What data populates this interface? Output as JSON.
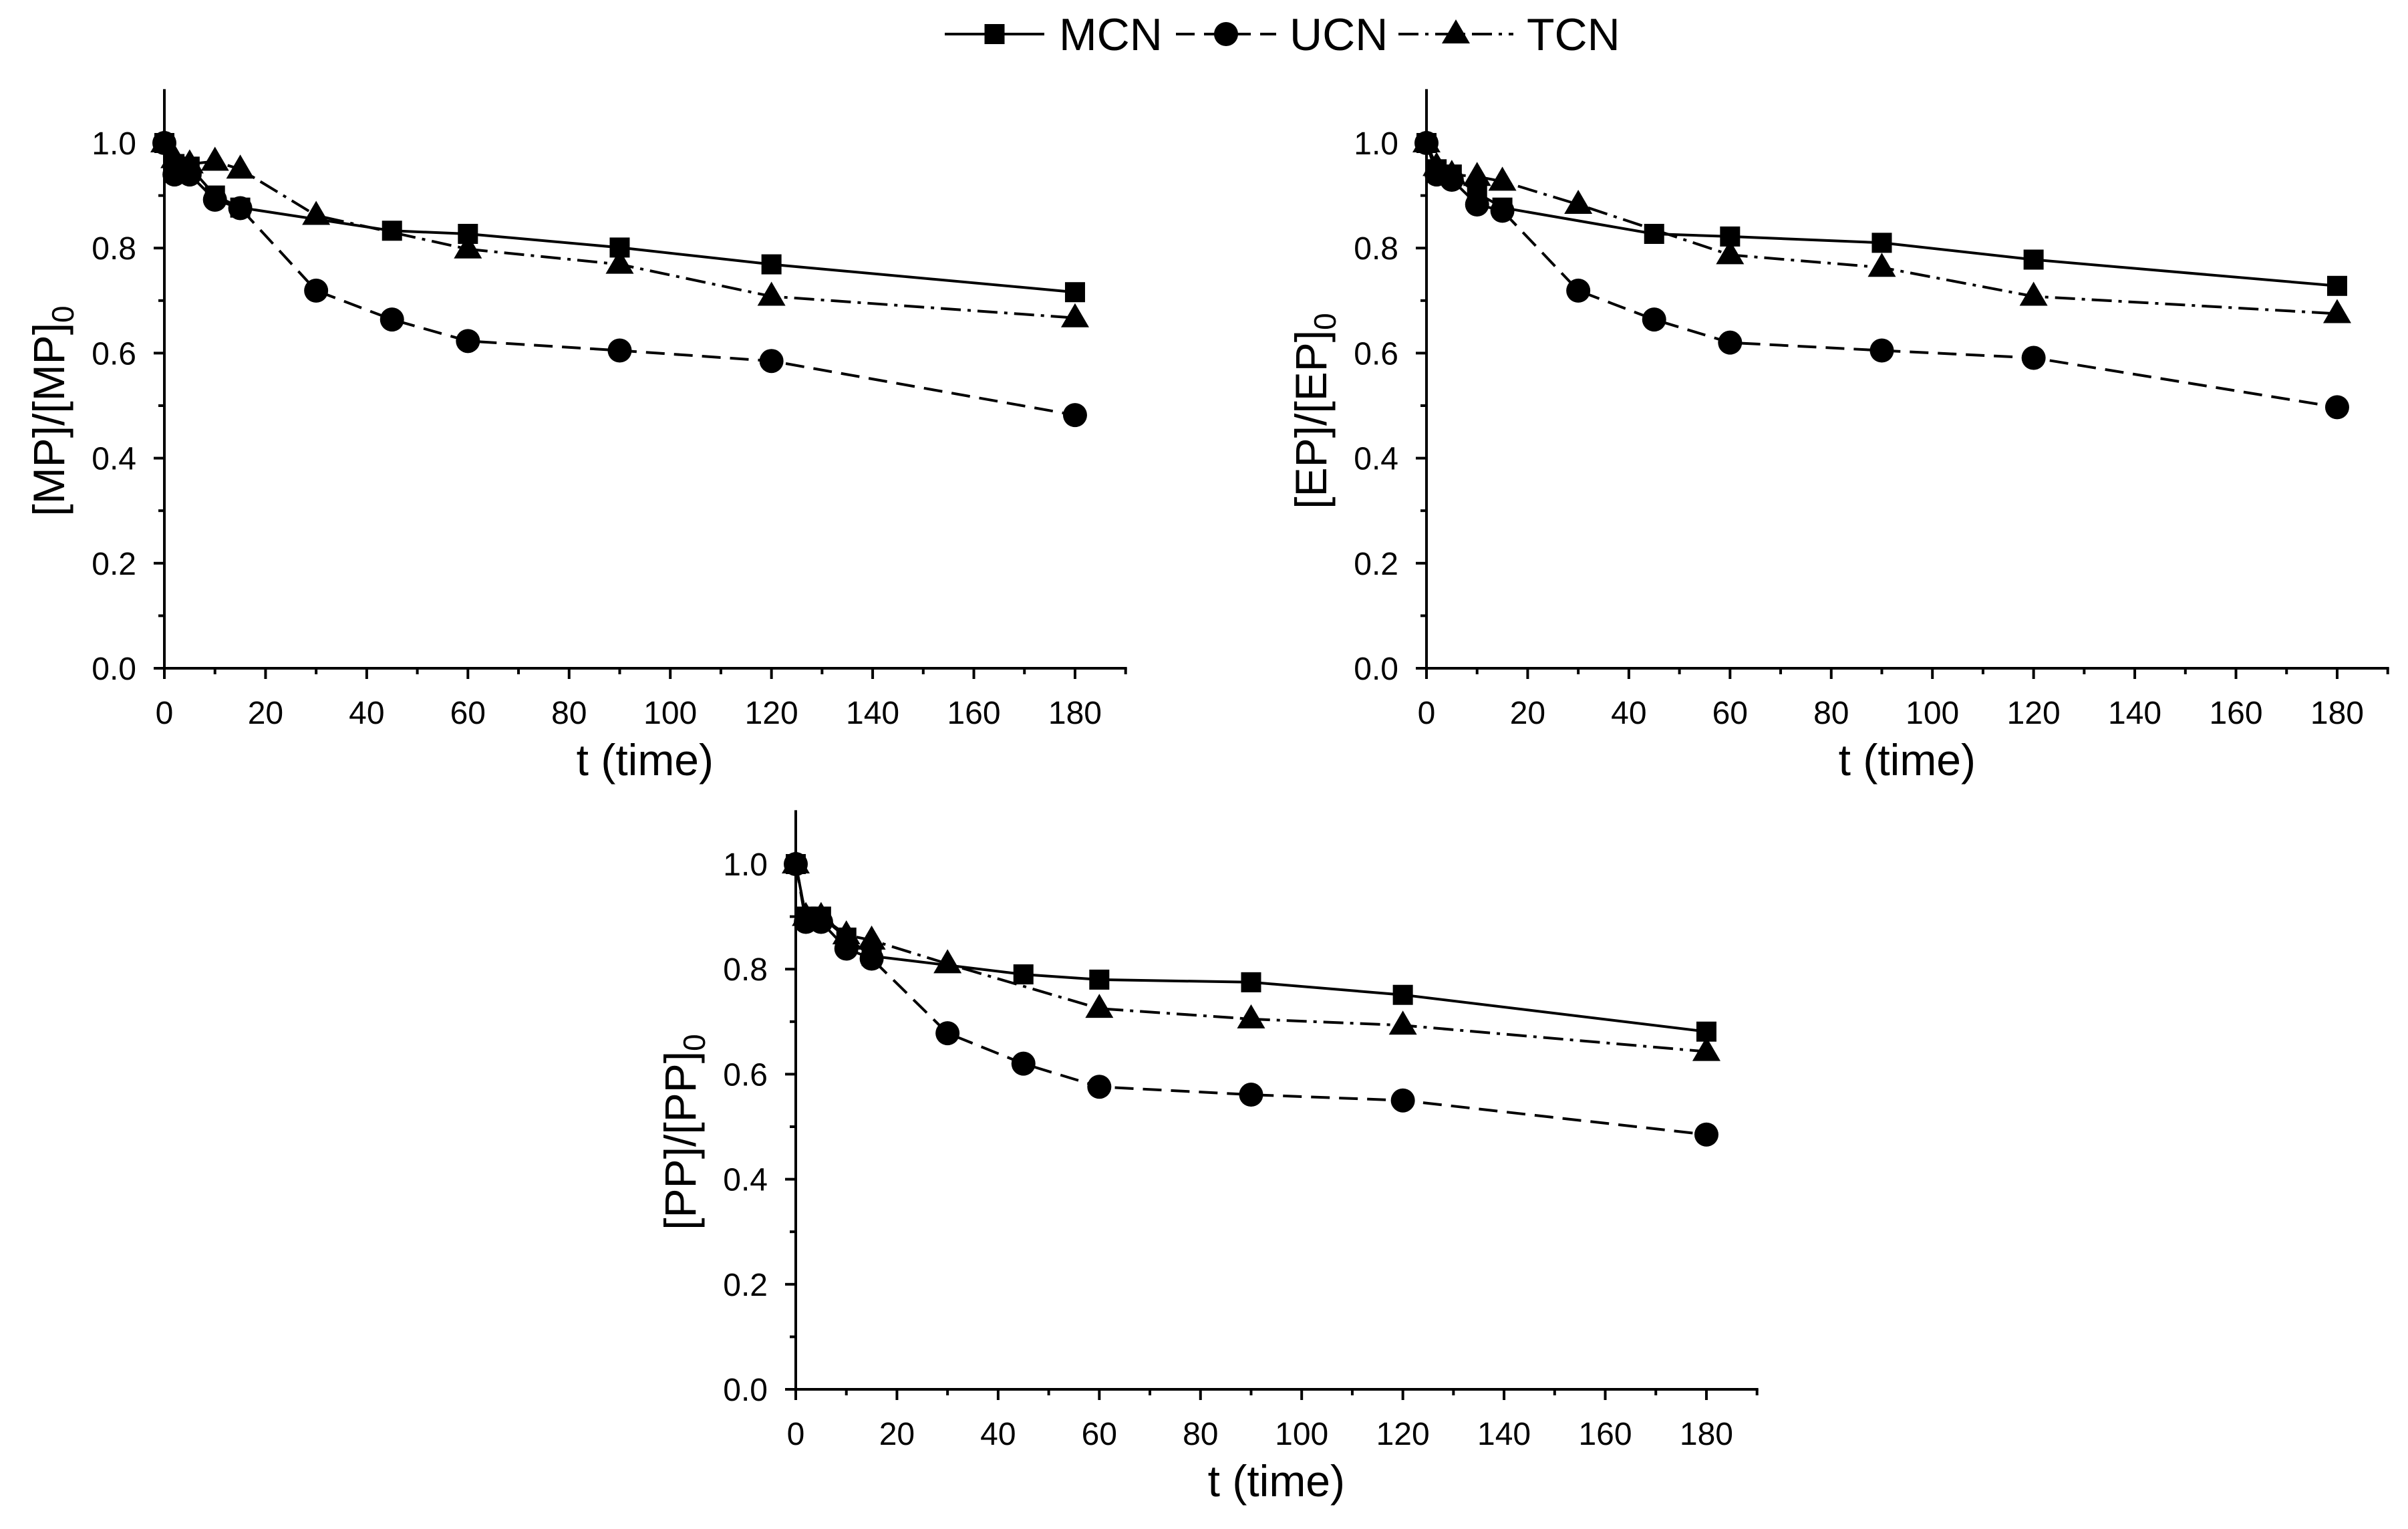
{
  "legend": {
    "position": "top-center"
  },
  "chart_data": [
    {
      "type": "line",
      "xlabel": "t (time)",
      "ylabel": "[MP]/[MP]",
      "ylabel_subscript": "0",
      "xlim": [
        0,
        190
      ],
      "ylim": [
        0,
        1.1
      ],
      "xtick_labels": [
        "0",
        "20",
        "40",
        "60",
        "80",
        "100",
        "120",
        "140",
        "160",
        "180"
      ],
      "ytick_labels": [
        "0.0",
        "0.2",
        "0.4",
        "0.6",
        "0.8",
        "1.0"
      ],
      "grid": false,
      "x": [
        0,
        2,
        5,
        10,
        15,
        30,
        45,
        60,
        90,
        120,
        180
      ],
      "series": [
        {
          "name": "MCN",
          "marker": "square",
          "line_style": "solid",
          "color": "#000000",
          "values": [
            1.0,
            0.96,
            0.955,
            0.9,
            0.877,
            null,
            0.833,
            0.827,
            0.801,
            0.769,
            0.716
          ]
        },
        {
          "name": "UCN",
          "marker": "circle",
          "line_style": "dashed",
          "color": "#000000",
          "values": [
            1.0,
            0.94,
            0.94,
            0.892,
            0.876,
            0.719,
            0.664,
            0.623,
            0.605,
            0.585,
            0.482
          ]
        },
        {
          "name": "TCN",
          "marker": "triangle",
          "line_style": "dash-dot",
          "color": "#000000",
          "values": [
            1.0,
            0.97,
            0.96,
            0.965,
            0.95,
            0.862,
            null,
            0.798,
            0.769,
            0.708,
            0.667
          ]
        }
      ]
    },
    {
      "type": "line",
      "xlabel": "t (time)",
      "ylabel": "[EP]/[EP]",
      "ylabel_subscript": "0",
      "xlim": [
        0,
        190
      ],
      "ylim": [
        0,
        1.1
      ],
      "xtick_labels": [
        "0",
        "20",
        "40",
        "60",
        "80",
        "100",
        "120",
        "140",
        "160",
        "180"
      ],
      "ytick_labels": [
        "0.0",
        "0.2",
        "0.4",
        "0.6",
        "0.8",
        "1.0"
      ],
      "grid": false,
      "x": [
        0,
        2,
        5,
        10,
        15,
        30,
        45,
        60,
        90,
        120,
        180
      ],
      "series": [
        {
          "name": "MCN",
          "marker": "square",
          "line_style": "solid",
          "color": "#000000",
          "values": [
            1.0,
            0.95,
            0.94,
            0.905,
            0.877,
            null,
            0.827,
            0.822,
            0.81,
            0.778,
            0.728
          ]
        },
        {
          "name": "UCN",
          "marker": "circle",
          "line_style": "dashed",
          "color": "#000000",
          "values": [
            1.0,
            0.94,
            0.93,
            0.883,
            0.871,
            0.719,
            0.664,
            0.62,
            0.605,
            0.591,
            0.497
          ]
        },
        {
          "name": "TCN",
          "marker": "triangle",
          "line_style": "dash-dot",
          "color": "#000000",
          "values": [
            1.0,
            0.955,
            0.94,
            0.936,
            0.927,
            0.883,
            null,
            0.787,
            0.763,
            0.708,
            0.675
          ]
        }
      ]
    },
    {
      "type": "line",
      "xlabel": "t (time)",
      "ylabel": "[PP]/[PP]",
      "ylabel_subscript": "0",
      "xlim": [
        0,
        190
      ],
      "ylim": [
        0,
        1.1
      ],
      "xtick_labels": [
        "0",
        "20",
        "40",
        "60",
        "80",
        "100",
        "120",
        "140",
        "160",
        "180"
      ],
      "ytick_labels": [
        "0.0",
        "0.2",
        "0.4",
        "0.6",
        "0.8",
        "1.0"
      ],
      "grid": false,
      "x": [
        0,
        2,
        5,
        10,
        15,
        30,
        45,
        60,
        90,
        120,
        180
      ],
      "series": [
        {
          "name": "MCN",
          "marker": "square",
          "line_style": "solid",
          "color": "#000000",
          "values": [
            1.0,
            0.9,
            0.9,
            0.86,
            0.825,
            null,
            0.79,
            0.78,
            0.775,
            0.751,
            0.681
          ]
        },
        {
          "name": "UCN",
          "marker": "circle",
          "line_style": "dashed",
          "color": "#000000",
          "values": [
            1.0,
            0.89,
            0.89,
            0.839,
            0.82,
            0.678,
            0.62,
            0.576,
            0.561,
            0.55,
            0.485
          ]
        },
        {
          "name": "TCN",
          "marker": "triangle",
          "line_style": "dash-dot",
          "color": "#000000",
          "values": [
            1.0,
            0.9,
            0.9,
            0.865,
            0.855,
            0.81,
            null,
            0.725,
            0.705,
            0.693,
            0.643
          ]
        }
      ]
    }
  ]
}
